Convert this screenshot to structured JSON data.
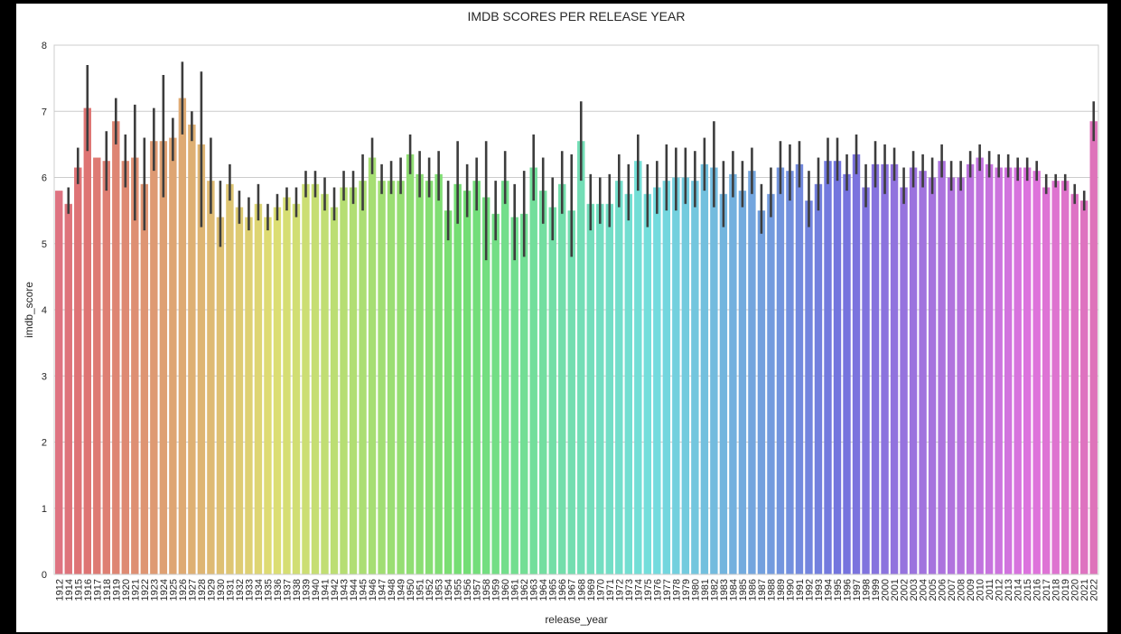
{
  "chart_data": {
    "type": "bar",
    "title": "IMDB SCORES PER RELEASE YEAR",
    "xlabel": "release_year",
    "ylabel": "imdb_score",
    "ylim": [
      0,
      8
    ],
    "yticks": [
      "0",
      "1",
      "2",
      "3",
      "4",
      "5",
      "6",
      "7",
      "8"
    ],
    "grid": true,
    "palette": "husl rainbow (red → orange → green → teal → blue → purple → pink)",
    "categories": [
      "1912",
      "1914",
      "1915",
      "1916",
      "1917",
      "1918",
      "1919",
      "1920",
      "1921",
      "1922",
      "1923",
      "1924",
      "1925",
      "1926",
      "1927",
      "1928",
      "1929",
      "1930",
      "1931",
      "1932",
      "1933",
      "1934",
      "1935",
      "1936",
      "1937",
      "1938",
      "1939",
      "1940",
      "1941",
      "1942",
      "1943",
      "1944",
      "1945",
      "1946",
      "1947",
      "1948",
      "1949",
      "1950",
      "1951",
      "1952",
      "1953",
      "1954",
      "1955",
      "1956",
      "1957",
      "1958",
      "1959",
      "1960",
      "1961",
      "1962",
      "1963",
      "1964",
      "1965",
      "1966",
      "1967",
      "1968",
      "1969",
      "1970",
      "1971",
      "1972",
      "1973",
      "1974",
      "1975",
      "1976",
      "1977",
      "1978",
      "1979",
      "1980",
      "1981",
      "1982",
      "1983",
      "1984",
      "1985",
      "1986",
      "1987",
      "1988",
      "1989",
      "1990",
      "1991",
      "1992",
      "1993",
      "1994",
      "1995",
      "1996",
      "1997",
      "1998",
      "1999",
      "2000",
      "2001",
      "2002",
      "2003",
      "2004",
      "2005",
      "2006",
      "2007",
      "2008",
      "2009",
      "2010",
      "2011",
      "2012",
      "2013",
      "2014",
      "2015",
      "2016",
      "2017",
      "2018",
      "2019",
      "2020",
      "2021",
      "2022"
    ],
    "values": [
      5.8,
      5.6,
      6.15,
      7.05,
      6.3,
      6.25,
      6.85,
      6.25,
      6.3,
      5.9,
      6.55,
      6.55,
      6.6,
      7.2,
      6.8,
      6.5,
      5.95,
      5.4,
      5.9,
      5.55,
      5.4,
      5.6,
      5.4,
      5.55,
      5.7,
      5.6,
      5.9,
      5.9,
      5.75,
      5.55,
      5.85,
      5.85,
      5.95,
      6.3,
      5.95,
      5.95,
      5.95,
      6.35,
      6.05,
      5.95,
      6.05,
      5.5,
      5.9,
      5.8,
      5.95,
      5.7,
      5.45,
      5.95,
      5.4,
      5.45,
      6.15,
      5.8,
      5.55,
      5.9,
      5.5,
      6.55,
      5.6,
      5.6,
      5.6,
      5.95,
      5.75,
      6.25,
      5.75,
      5.85,
      5.95,
      6.0,
      6.0,
      5.95,
      6.2,
      6.15,
      5.75,
      6.05,
      5.8,
      6.1,
      5.5,
      5.75,
      6.15,
      6.1,
      6.2,
      5.65,
      5.9,
      6.25,
      6.25,
      6.05,
      6.35,
      5.85,
      6.2,
      6.2,
      6.2,
      5.85,
      6.15,
      6.1,
      6.0,
      6.25,
      6.0,
      6.0,
      6.2,
      6.3,
      6.2,
      6.15,
      6.15,
      6.15,
      6.15,
      6.1,
      5.85,
      5.95,
      5.95,
      5.75,
      5.65,
      6.85
    ],
    "ci_low": [
      5.8,
      5.45,
      5.9,
      6.4,
      6.3,
      5.8,
      6.5,
      5.85,
      5.35,
      5.2,
      6.1,
      5.7,
      6.25,
      6.65,
      6.55,
      5.25,
      5.45,
      4.95,
      5.65,
      5.3,
      5.2,
      5.35,
      5.2,
      5.35,
      5.5,
      5.4,
      5.7,
      5.7,
      5.5,
      5.35,
      5.65,
      5.6,
      5.5,
      6.05,
      5.75,
      5.75,
      5.75,
      6.05,
      5.7,
      5.7,
      5.65,
      5.05,
      5.3,
      5.4,
      5.5,
      4.75,
      5.05,
      5.6,
      4.75,
      4.8,
      5.65,
      5.3,
      5.05,
      5.45,
      4.8,
      5.95,
      5.2,
      5.3,
      5.25,
      5.55,
      5.35,
      5.8,
      5.25,
      5.45,
      5.5,
      5.5,
      5.6,
      5.55,
      5.8,
      5.55,
      5.25,
      5.7,
      5.55,
      5.75,
      5.15,
      5.4,
      5.75,
      5.65,
      5.85,
      5.25,
      5.5,
      5.9,
      5.95,
      5.8,
      6.05,
      5.55,
      5.85,
      5.75,
      5.95,
      5.6,
      5.85,
      5.85,
      5.75,
      6.0,
      5.8,
      5.8,
      6.0,
      6.1,
      6.0,
      6.0,
      6.0,
      5.95,
      5.95,
      5.95,
      5.75,
      5.85,
      5.8,
      5.6,
      5.5,
      6.55
    ],
    "ci_high": [
      5.8,
      5.85,
      6.45,
      7.7,
      6.3,
      6.7,
      7.2,
      6.65,
      7.1,
      6.6,
      7.05,
      7.55,
      6.9,
      7.75,
      7.0,
      7.6,
      6.6,
      5.95,
      6.2,
      5.8,
      5.7,
      5.9,
      5.6,
      5.75,
      5.85,
      5.85,
      6.1,
      6.1,
      6.0,
      5.85,
      6.1,
      6.1,
      6.35,
      6.6,
      6.2,
      6.25,
      6.3,
      6.65,
      6.4,
      6.3,
      6.4,
      5.95,
      6.55,
      6.2,
      6.3,
      6.55,
      5.95,
      6.4,
      5.9,
      6.1,
      6.65,
      6.3,
      6.0,
      6.4,
      6.35,
      7.15,
      6.05,
      6.0,
      6.05,
      6.35,
      6.2,
      6.65,
      6.2,
      6.25,
      6.5,
      6.45,
      6.45,
      6.4,
      6.6,
      6.85,
      6.25,
      6.4,
      6.25,
      6.45,
      5.9,
      6.15,
      6.55,
      6.5,
      6.55,
      6.1,
      6.3,
      6.6,
      6.6,
      6.35,
      6.65,
      6.2,
      6.55,
      6.5,
      6.45,
      6.15,
      6.4,
      6.35,
      6.3,
      6.5,
      6.25,
      6.25,
      6.4,
      6.5,
      6.4,
      6.35,
      6.35,
      6.3,
      6.3,
      6.25,
      6.05,
      6.05,
      6.05,
      5.9,
      5.8,
      7.15
    ]
  }
}
